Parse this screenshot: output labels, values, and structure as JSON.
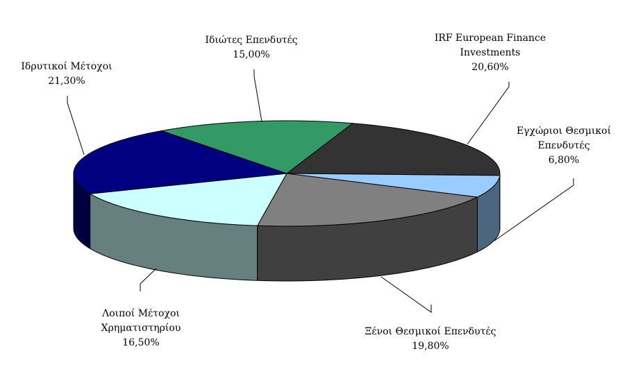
{
  "chart_data": {
    "type": "pie",
    "title": "",
    "style": "3d-exploded-none",
    "slices": [
      {
        "label": [
          "IRF European Finance",
          "Investments"
        ],
        "value_label": "20,60%",
        "value": 20.6,
        "color": "#333333",
        "side": "#1a1a1a"
      },
      {
        "label": [
          "Εγχώριοι Θεσμικοί",
          "Επενδυτές"
        ],
        "value_label": "6,80%",
        "value": 6.8,
        "color": "#99ccff",
        "side": "#4d6680"
      },
      {
        "label": [
          "Ξένοι Θεσμικοί Επενδυτές"
        ],
        "value_label": "19,80%",
        "value": 19.8,
        "color": "#808080",
        "side": "#404040"
      },
      {
        "label": [
          "Λοιποί Μέτοχοι",
          "Χρηματιστηρίου"
        ],
        "value_label": "16,50%",
        "value": 16.5,
        "color": "#ccffff",
        "side": "#668080"
      },
      {
        "label": [
          "Ιδρυτικοί Μέτοχοι"
        ],
        "value_label": "21,30%",
        "value": 21.3,
        "color": "#000080",
        "side": "#000040"
      },
      {
        "label": [
          "Ιδιώτες Επενδυτές"
        ],
        "value_label": "15,00%",
        "value": 15.0,
        "color": "#339966",
        "side": "#1a4d33"
      }
    ]
  }
}
